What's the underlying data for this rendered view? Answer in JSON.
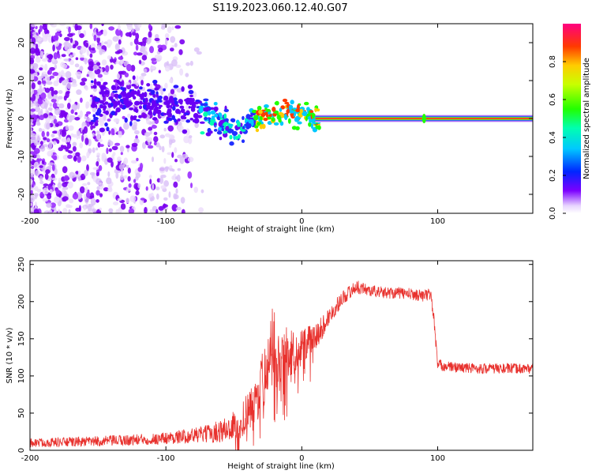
{
  "figure_title": "S119.2023.060.12.40.G07",
  "chart_data": [
    {
      "type": "heatmap",
      "xlabel": "Height of straight line (km)",
      "ylabel": "Frequency (Hz)",
      "xlim": [
        -200,
        170
      ],
      "ylim": [
        -25,
        25
      ],
      "xticks": [
        -200,
        -100,
        0,
        100
      ],
      "yticks": [
        -20,
        -10,
        0,
        10,
        20
      ],
      "colorbar": {
        "label": "Normalized spectral amplitude",
        "range": [
          0,
          1
        ],
        "ticks": [
          0.0,
          0.2,
          0.4,
          0.6,
          0.8
        ],
        "tick_labels": [
          "0.0",
          "0.2",
          "0.4",
          "0.6",
          "0.8"
        ]
      },
      "ridge": {
        "description_points_x": [
          -150,
          -130,
          -110,
          -95,
          -85,
          -75,
          -65,
          -55,
          -45,
          -38,
          -30,
          -20,
          -10,
          -5,
          0,
          5,
          10,
          20,
          90,
          170
        ],
        "description_points_y": [
          4,
          5,
          4,
          3,
          3,
          2,
          0,
          -2,
          -3,
          -1,
          0,
          1,
          2,
          1,
          2,
          1,
          0,
          0,
          0,
          0
        ]
      },
      "line_level_hz": 0,
      "line_start_x": 10
    },
    {
      "type": "line",
      "xlabel": "Height of straight line (km)",
      "ylabel": "SNR (10 * v/v)",
      "xlim": [
        -200,
        170
      ],
      "ylim": [
        0,
        255
      ],
      "xticks": [
        -200,
        -100,
        0,
        100
      ],
      "yticks": [
        0,
        50,
        100,
        150,
        200,
        250
      ],
      "color": "#e8312d",
      "trend_x": [
        -200,
        -150,
        -110,
        -90,
        -70,
        -55,
        -45,
        -35,
        -28,
        -22,
        -15,
        -5,
        0,
        10,
        20,
        30,
        40,
        50,
        60,
        70,
        80,
        90,
        95,
        97,
        100,
        110,
        130,
        150,
        170
      ],
      "trend_y": [
        10,
        12,
        15,
        18,
        22,
        28,
        40,
        60,
        100,
        150,
        130,
        130,
        140,
        150,
        180,
        205,
        220,
        215,
        212,
        212,
        210,
        208,
        210,
        180,
        115,
        112,
        110,
        110,
        110
      ],
      "noise_amplitude": [
        6,
        7,
        8,
        9,
        12,
        18,
        25,
        30,
        40,
        45,
        40,
        30,
        25,
        20,
        12,
        10,
        9,
        8,
        8,
        8,
        8,
        8,
        8,
        10,
        8,
        7,
        7,
        7,
        7
      ]
    }
  ]
}
